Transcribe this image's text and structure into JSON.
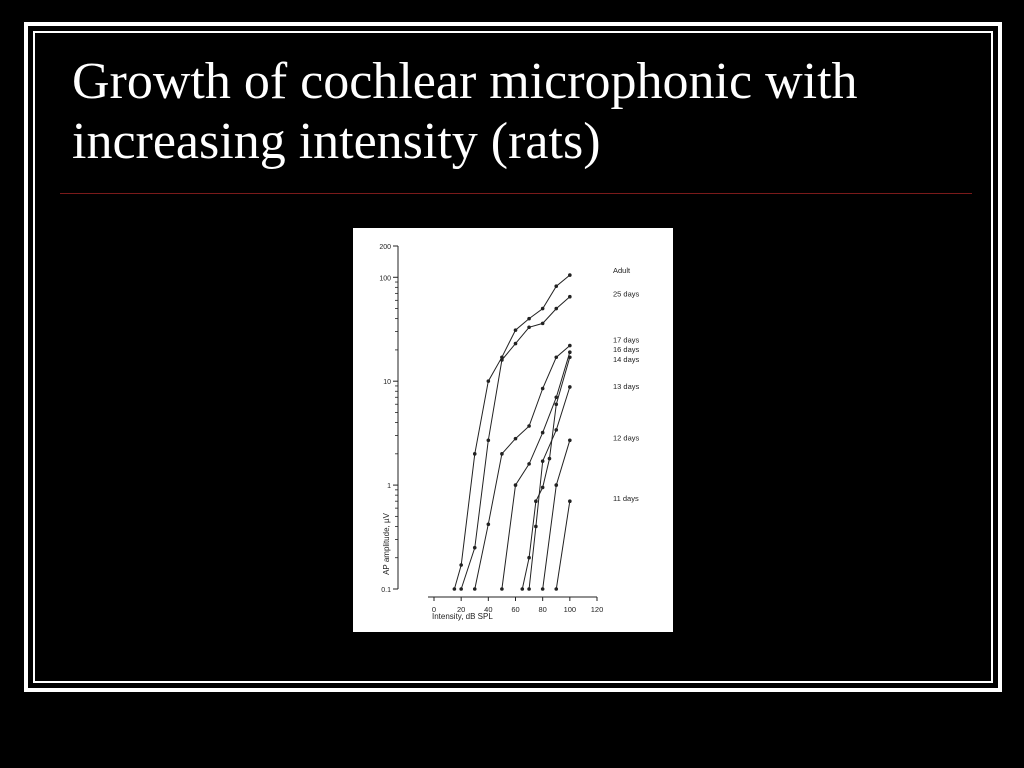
{
  "slide": {
    "title": "Growth of cochlear microphonic with increasing intensity (rats)"
  },
  "colors": {
    "background": "#000000",
    "text": "#ffffff",
    "rule": "#7a1a1a",
    "figure_bg": "#ffffff",
    "ink": "#222222"
  },
  "chart_data": {
    "type": "line",
    "xlabel": "Intensity, dB  SPL",
    "ylabel": "AP amplitude, µV",
    "xlim": [
      0,
      120
    ],
    "ylim": [
      0.1,
      200
    ],
    "yscale": "log",
    "x_ticks": [
      0,
      20,
      40,
      60,
      80,
      100,
      120
    ],
    "y_ticks": [
      {
        "value": 0.1,
        "label": "0.1"
      },
      {
        "value": 1,
        "label": "1"
      },
      {
        "value": 10,
        "label": "10"
      },
      {
        "value": 100,
        "label": "100"
      },
      {
        "value": 200,
        "label": "200"
      }
    ],
    "legend": "series labels at right end of lines",
    "grid": false,
    "series": [
      {
        "name": "Adult",
        "points": [
          [
            15,
            0.1
          ],
          [
            20,
            0.17
          ],
          [
            30,
            2
          ],
          [
            40,
            10
          ],
          [
            50,
            17
          ],
          [
            60,
            31
          ],
          [
            70,
            40
          ],
          [
            80,
            50
          ],
          [
            90,
            82
          ],
          [
            100,
            105
          ]
        ]
      },
      {
        "name": "25 days",
        "points": [
          [
            20,
            0.1
          ],
          [
            30,
            0.25
          ],
          [
            40,
            2.7
          ],
          [
            50,
            16
          ],
          [
            60,
            23
          ],
          [
            70,
            33
          ],
          [
            80,
            36
          ],
          [
            90,
            50
          ],
          [
            100,
            65
          ]
        ]
      },
      {
        "name": "17 days",
        "points": [
          [
            30,
            0.1
          ],
          [
            40,
            0.42
          ],
          [
            50,
            2
          ],
          [
            60,
            2.8
          ],
          [
            70,
            3.7
          ],
          [
            80,
            8.5
          ],
          [
            90,
            17
          ],
          [
            100,
            22
          ]
        ]
      },
      {
        "name": "16 days",
        "points": [
          [
            50,
            0.1
          ],
          [
            60,
            1
          ],
          [
            70,
            1.6
          ],
          [
            80,
            3.2
          ],
          [
            90,
            7
          ],
          [
            100,
            19
          ]
        ]
      },
      {
        "name": "14 days",
        "points": [
          [
            65,
            0.1
          ],
          [
            70,
            0.2
          ],
          [
            75,
            0.7
          ],
          [
            80,
            0.95
          ],
          [
            85,
            1.8
          ],
          [
            90,
            6
          ],
          [
            100,
            17
          ]
        ]
      },
      {
        "name": "13 days",
        "points": [
          [
            70,
            0.1
          ],
          [
            75,
            0.4
          ],
          [
            80,
            1.7
          ],
          [
            90,
            3.4
          ],
          [
            100,
            8.8
          ]
        ]
      },
      {
        "name": "12 days",
        "points": [
          [
            80,
            0.1
          ],
          [
            90,
            1
          ],
          [
            100,
            2.7
          ]
        ]
      },
      {
        "name": "11 days",
        "points": [
          [
            90,
            0.1
          ],
          [
            100,
            0.7
          ]
        ]
      }
    ]
  }
}
